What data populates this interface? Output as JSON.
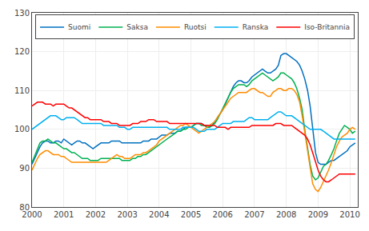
{
  "chart_data": {
    "type": "line",
    "x": [
      2000.0,
      2000.08,
      2000.17,
      2000.25,
      2000.33,
      2000.42,
      2000.5,
      2000.58,
      2000.67,
      2000.75,
      2000.83,
      2000.92,
      2001.0,
      2001.08,
      2001.17,
      2001.25,
      2001.33,
      2001.42,
      2001.5,
      2001.58,
      2001.67,
      2001.75,
      2001.83,
      2001.92,
      2002.0,
      2002.08,
      2002.17,
      2002.25,
      2002.33,
      2002.42,
      2002.5,
      2002.58,
      2002.67,
      2002.75,
      2002.83,
      2002.92,
      2003.0,
      2003.08,
      2003.17,
      2003.25,
      2003.33,
      2003.42,
      2003.5,
      2003.58,
      2003.67,
      2003.75,
      2003.83,
      2003.92,
      2004.0,
      2004.08,
      2004.17,
      2004.25,
      2004.33,
      2004.42,
      2004.5,
      2004.58,
      2004.67,
      2004.75,
      2004.83,
      2004.92,
      2005.0,
      2005.08,
      2005.17,
      2005.25,
      2005.33,
      2005.42,
      2005.5,
      2005.58,
      2005.67,
      2005.75,
      2005.83,
      2005.92,
      2006.0,
      2006.08,
      2006.17,
      2006.25,
      2006.33,
      2006.42,
      2006.5,
      2006.58,
      2006.67,
      2006.75,
      2006.83,
      2006.92,
      2007.0,
      2007.08,
      2007.17,
      2007.25,
      2007.33,
      2007.42,
      2007.5,
      2007.58,
      2007.67,
      2007.75,
      2007.83,
      2007.92,
      2008.0,
      2008.08,
      2008.17,
      2008.25,
      2008.33,
      2008.42,
      2008.5,
      2008.58,
      2008.67,
      2008.75,
      2008.83,
      2008.92,
      2009.0,
      2009.08,
      2009.17,
      2009.25,
      2009.33,
      2009.42,
      2009.5,
      2009.58,
      2009.67,
      2009.75,
      2009.83,
      2009.92,
      2010.0,
      2010.08,
      2010.17
    ],
    "series": [
      {
        "name": "Suomi",
        "color": "#0070C0",
        "values": [
          91.0,
          92.5,
          94.0,
          95.5,
          96.5,
          97.0,
          97.0,
          96.5,
          96.5,
          97.0,
          97.0,
          96.5,
          97.5,
          97.0,
          96.5,
          96.0,
          96.5,
          97.0,
          97.0,
          96.5,
          96.5,
          96.0,
          95.5,
          95.0,
          95.5,
          96.0,
          96.5,
          96.5,
          96.5,
          96.5,
          97.0,
          97.0,
          97.0,
          97.0,
          96.5,
          96.5,
          96.5,
          96.5,
          96.5,
          96.5,
          96.5,
          96.5,
          97.0,
          97.0,
          97.0,
          97.5,
          97.5,
          97.5,
          98.0,
          98.5,
          98.5,
          98.5,
          99.0,
          99.0,
          99.0,
          99.5,
          99.5,
          100.0,
          100.5,
          100.5,
          100.5,
          101.0,
          101.5,
          101.5,
          101.5,
          101.0,
          101.0,
          100.5,
          101.0,
          102.0,
          103.0,
          104.0,
          105.0,
          106.5,
          108.0,
          109.5,
          111.0,
          112.0,
          112.5,
          112.5,
          112.0,
          112.0,
          112.5,
          113.5,
          114.0,
          114.5,
          115.0,
          115.5,
          115.0,
          114.5,
          114.5,
          115.0,
          115.5,
          116.5,
          119.0,
          119.5,
          119.5,
          119.0,
          118.5,
          118.0,
          117.5,
          116.5,
          115.0,
          113.0,
          110.0,
          106.0,
          100.0,
          94.0,
          91.5,
          91.0,
          91.0,
          91.0,
          91.5,
          92.0,
          92.0,
          92.5,
          93.0,
          93.5,
          94.0,
          94.5,
          95.5,
          96.0,
          96.5
        ]
      },
      {
        "name": "Saksa",
        "color": "#00B050",
        "values": [
          91.5,
          93.0,
          95.0,
          96.5,
          97.0,
          97.0,
          97.5,
          97.0,
          96.5,
          96.5,
          96.0,
          95.5,
          95.0,
          95.0,
          94.5,
          94.0,
          94.0,
          93.5,
          93.0,
          92.5,
          92.5,
          92.5,
          92.0,
          92.0,
          92.0,
          92.0,
          92.5,
          92.5,
          92.5,
          92.5,
          92.5,
          92.5,
          92.5,
          92.5,
          92.0,
          92.0,
          92.0,
          92.0,
          92.5,
          92.5,
          93.0,
          93.0,
          93.5,
          93.5,
          94.0,
          94.5,
          95.0,
          95.5,
          96.0,
          96.5,
          97.0,
          97.5,
          98.0,
          98.5,
          99.0,
          99.5,
          99.5,
          100.0,
          100.0,
          100.5,
          100.5,
          101.0,
          101.5,
          101.5,
          101.0,
          101.0,
          100.5,
          100.5,
          101.0,
          101.5,
          102.5,
          104.0,
          105.5,
          107.0,
          108.5,
          109.5,
          110.5,
          111.0,
          111.5,
          111.5,
          111.5,
          111.0,
          111.5,
          112.5,
          113.0,
          113.5,
          114.0,
          114.5,
          114.0,
          113.5,
          113.0,
          112.5,
          113.0,
          113.5,
          114.5,
          114.5,
          114.0,
          113.5,
          113.0,
          112.0,
          110.5,
          108.0,
          105.0,
          100.0,
          95.5,
          91.0,
          88.0,
          87.0,
          87.5,
          89.0,
          90.5,
          91.0,
          92.0,
          93.5,
          95.0,
          97.0,
          99.0,
          100.0,
          101.0,
          100.5,
          100.0,
          99.0,
          99.5
        ]
      },
      {
        "name": "Ruotsi",
        "color": "#FF8C00",
        "values": [
          89.5,
          91.0,
          92.5,
          93.5,
          94.0,
          94.5,
          94.5,
          94.0,
          93.5,
          93.5,
          93.5,
          93.0,
          93.0,
          92.5,
          92.0,
          91.5,
          91.5,
          91.5,
          91.5,
          91.5,
          91.5,
          91.5,
          91.5,
          91.5,
          91.5,
          91.5,
          91.5,
          91.5,
          91.5,
          92.0,
          92.5,
          93.0,
          93.5,
          93.0,
          93.0,
          92.5,
          92.5,
          92.5,
          93.0,
          93.5,
          93.5,
          93.5,
          94.0,
          94.0,
          94.5,
          95.0,
          95.5,
          96.0,
          97.0,
          97.5,
          98.0,
          98.5,
          99.0,
          99.5,
          100.0,
          100.5,
          101.0,
          101.0,
          101.5,
          101.0,
          100.5,
          100.0,
          99.5,
          99.0,
          99.5,
          100.0,
          100.5,
          101.0,
          101.5,
          102.0,
          103.0,
          104.0,
          105.0,
          106.0,
          107.0,
          108.0,
          108.5,
          109.0,
          109.5,
          109.5,
          109.5,
          109.5,
          110.0,
          110.5,
          110.5,
          110.0,
          109.5,
          109.5,
          109.0,
          108.5,
          108.5,
          109.5,
          110.0,
          110.5,
          110.5,
          110.0,
          110.0,
          110.5,
          110.5,
          110.0,
          109.0,
          107.0,
          103.5,
          99.0,
          94.0,
          89.5,
          86.0,
          84.5,
          84.0,
          85.0,
          86.5,
          88.0,
          89.5,
          91.5,
          93.5,
          95.5,
          97.0,
          98.0,
          98.5,
          99.0,
          100.0,
          100.5,
          100.0
        ]
      },
      {
        "name": "Ranska",
        "color": "#00B0F0",
        "values": [
          100.0,
          100.5,
          101.0,
          101.5,
          102.0,
          102.5,
          103.0,
          103.5,
          103.5,
          103.5,
          103.0,
          102.5,
          102.5,
          103.0,
          103.0,
          103.0,
          103.0,
          102.5,
          102.0,
          101.5,
          101.5,
          101.5,
          101.5,
          101.5,
          101.5,
          101.5,
          101.5,
          101.0,
          101.0,
          101.0,
          101.0,
          101.0,
          101.0,
          100.5,
          100.5,
          100.5,
          100.0,
          100.0,
          100.5,
          100.5,
          100.5,
          100.5,
          100.5,
          100.5,
          100.5,
          100.5,
          100.5,
          100.5,
          100.5,
          100.5,
          100.5,
          100.5,
          100.0,
          100.0,
          100.0,
          100.0,
          100.0,
          100.5,
          100.5,
          100.5,
          100.5,
          100.5,
          100.0,
          99.5,
          99.5,
          99.5,
          100.0,
          100.0,
          100.0,
          100.0,
          100.5,
          101.0,
          101.5,
          101.5,
          101.5,
          101.5,
          102.0,
          102.0,
          102.0,
          102.0,
          102.0,
          102.5,
          103.0,
          103.0,
          102.5,
          102.5,
          102.5,
          102.5,
          102.5,
          102.5,
          103.0,
          103.5,
          104.0,
          104.5,
          104.5,
          104.0,
          103.5,
          103.5,
          103.5,
          103.0,
          102.5,
          102.0,
          101.5,
          101.0,
          100.5,
          100.0,
          100.0,
          100.0,
          100.0,
          100.0,
          99.5,
          99.0,
          98.5,
          98.0,
          97.5,
          97.5,
          97.5,
          97.5,
          97.5,
          97.5,
          97.5,
          97.5,
          97.5
        ]
      },
      {
        "name": "Iso-Britannia",
        "color": "#FF0000",
        "values": [
          106.0,
          106.5,
          107.0,
          107.0,
          107.0,
          106.5,
          106.5,
          106.5,
          106.0,
          106.5,
          106.5,
          106.5,
          106.5,
          106.0,
          105.5,
          105.5,
          105.0,
          104.5,
          104.0,
          103.5,
          103.0,
          103.0,
          102.5,
          102.5,
          102.5,
          102.5,
          102.5,
          102.0,
          102.0,
          102.0,
          101.5,
          101.5,
          101.5,
          101.0,
          101.0,
          101.0,
          101.0,
          101.0,
          101.5,
          101.5,
          101.5,
          102.0,
          102.0,
          102.0,
          102.5,
          102.5,
          102.5,
          102.0,
          102.0,
          102.0,
          102.0,
          102.0,
          101.5,
          101.5,
          101.5,
          101.5,
          101.5,
          101.5,
          101.5,
          101.5,
          101.5,
          101.5,
          101.5,
          101.5,
          101.5,
          101.0,
          101.0,
          101.0,
          101.0,
          101.0,
          100.5,
          100.5,
          100.5,
          100.5,
          100.0,
          100.5,
          100.5,
          100.5,
          100.5,
          100.5,
          100.5,
          100.5,
          100.5,
          101.0,
          101.0,
          101.0,
          101.0,
          101.0,
          101.0,
          101.0,
          101.0,
          101.0,
          101.5,
          101.5,
          101.5,
          101.0,
          101.0,
          101.0,
          101.0,
          100.5,
          100.0,
          99.5,
          99.0,
          98.5,
          97.5,
          96.0,
          94.0,
          91.5,
          89.5,
          88.0,
          87.0,
          86.5,
          86.5,
          87.0,
          87.5,
          88.0,
          88.5,
          88.5,
          88.5,
          88.5,
          88.5,
          88.5,
          88.5
        ]
      }
    ],
    "xlim": [
      2000.0,
      2010.25
    ],
    "xticks": [
      2000,
      2001,
      2002,
      2003,
      2004,
      2005,
      2006,
      2007,
      2008,
      2009,
      2010
    ],
    "ylim": [
      80,
      130
    ],
    "yticks": [
      80,
      90,
      100,
      110,
      120,
      130
    ],
    "grid": true,
    "legend": "upper left"
  }
}
